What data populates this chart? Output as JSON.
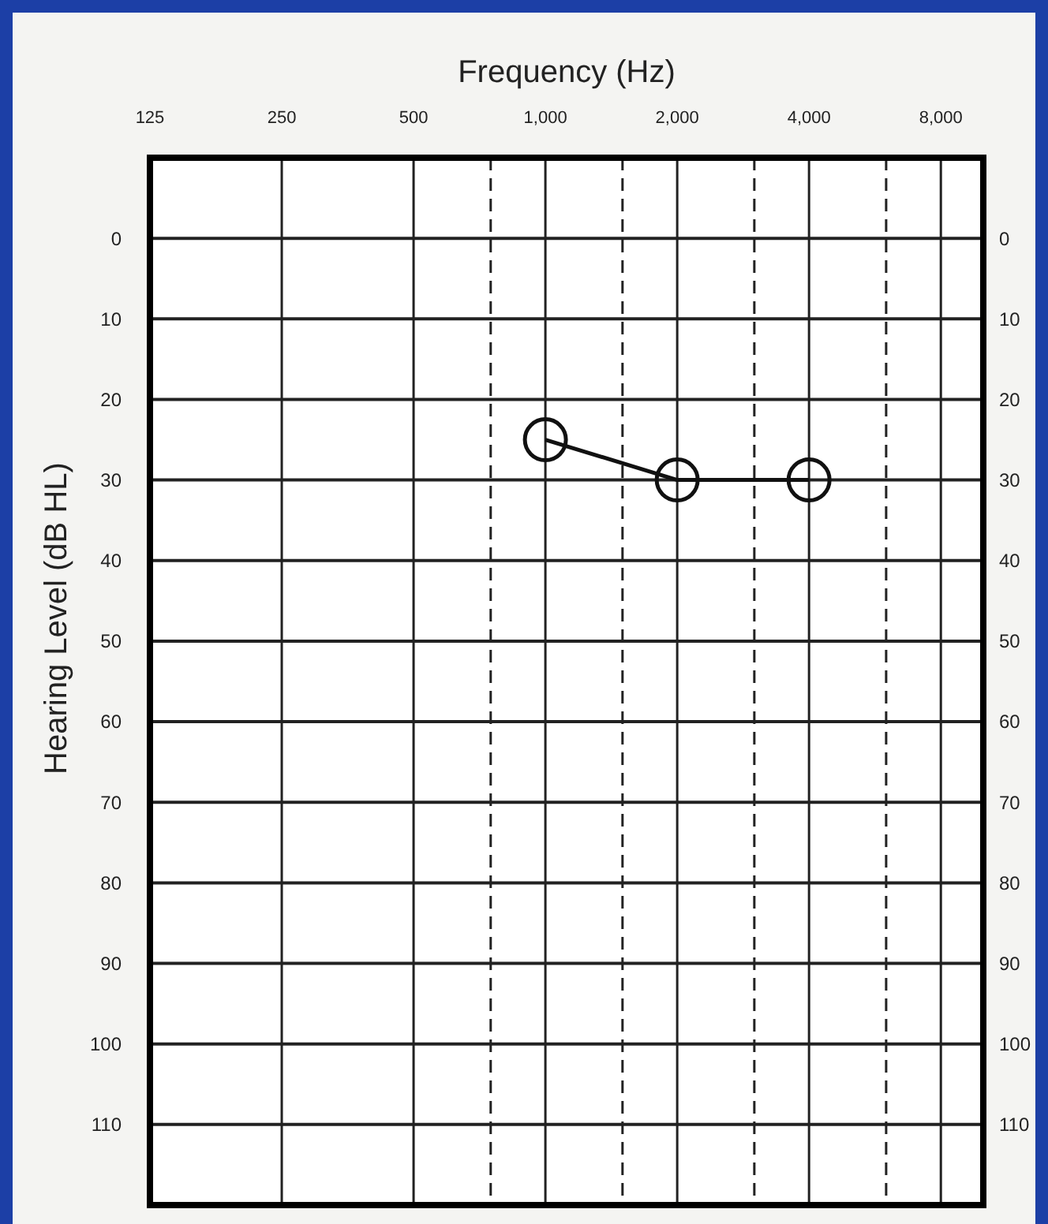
{
  "chart_data": {
    "type": "line",
    "xlabel": "Frequency (Hz)",
    "ylabel": "Hearing Level (dB HL)",
    "x": [
      1000,
      2000,
      4000
    ],
    "series": [
      {
        "color": "#111111",
        "values": [
          25,
          30,
          30
        ]
      }
    ],
    "log": "x",
    "xlim": [
      125,
      10000
    ],
    "xticks": [
      125,
      250,
      500,
      {
        "value": 750,
        "label": null
      },
      {
        "value": 1000,
        "label": "1,000"
      },
      {
        "value": 1500,
        "label": null
      },
      {
        "value": 2000,
        "label": "2,000"
      },
      {
        "value": 3000,
        "label": null
      },
      {
        "value": 4000,
        "label": "4,000"
      },
      {
        "value": 6000,
        "label": null
      },
      {
        "value": 8000,
        "label": "8,000"
      }
    ],
    "ylim": [
      120,
      -10
    ],
    "yticks": [
      0,
      10,
      20,
      30,
      40,
      50,
      60,
      70,
      80,
      90,
      100,
      110
    ],
    "y2lim": [
      120,
      -10
    ],
    "y2ticks": [
      0,
      10,
      20,
      30,
      40,
      50,
      60,
      70,
      80,
      90,
      100,
      110
    ],
    "grid": true,
    "marker": "circle",
    "line_style": "solid"
  }
}
